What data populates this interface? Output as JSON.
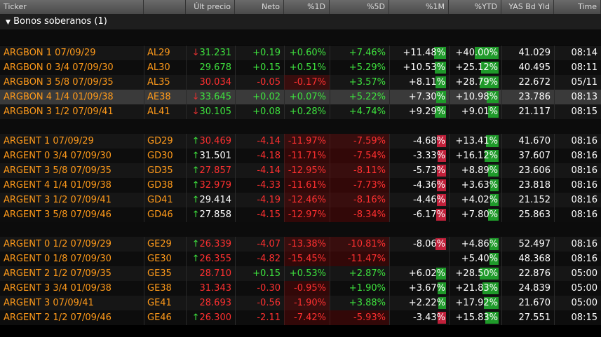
{
  "headers": {
    "ticker": "Ticker",
    "price": "Últ precio",
    "neto": "Neto",
    "d1": "%1D",
    "d5": "%5D",
    "m1": "%1M",
    "ytd": "%YTD",
    "yld": "YAS Bd Yld",
    "time": "Time"
  },
  "group_title": "Bonos soberanos (1)",
  "groups": [
    {
      "rows": [
        {
          "name": "ARGBON 1 07/09/29",
          "code": "AL29",
          "arrow": "↓",
          "arrow_color": "#e03030",
          "price": "31.231",
          "price_color": "#3ee23e",
          "neto": "+0.19",
          "d1": "+0.60%",
          "d5": "+7.46%",
          "m1": "+11.48%",
          "ytd": "+40.00%",
          "yld": "41.029",
          "time": "08:14"
        },
        {
          "name": "ARGBON 0 3/4 07/09/30",
          "code": "AL30",
          "arrow": null,
          "arrow_color": null,
          "price": "29.678",
          "price_color": "#3ee23e",
          "neto": "+0.15",
          "d1": "+0.51%",
          "d5": "+5.29%",
          "m1": "+10.53%",
          "ytd": "+25.12%",
          "yld": "40.495",
          "time": "08:11"
        },
        {
          "name": "ARGBON 3 5/8 07/09/35",
          "code": "AL35",
          "arrow": null,
          "arrow_color": null,
          "price": "30.034",
          "price_color": "#ff3030",
          "neto": "-0.05",
          "d1": "-0.17%",
          "d5": "+3.57%",
          "m1": "+8.11%",
          "ytd": "+28.79%",
          "yld": "22.672",
          "time": "05/11"
        },
        {
          "name": "ARGBON 4 1/4 01/09/38",
          "code": "AE38",
          "arrow": "↓",
          "arrow_color": "#e03030",
          "price": "33.645",
          "price_color": "#3ee23e",
          "neto": "+0.02",
          "d1": "+0.07%",
          "d5": "+5.22%",
          "m1": "+7.30%",
          "ytd": "+10.98%",
          "yld": "23.786",
          "time": "08:13",
          "selected": true
        },
        {
          "name": "ARGBON 3 1/2 07/09/41",
          "code": "AL41",
          "arrow": "↓",
          "arrow_color": "#e03030",
          "price": "30.105",
          "price_color": "#3ee23e",
          "neto": "+0.08",
          "d1": "+0.28%",
          "d5": "+4.74%",
          "m1": "+9.29%",
          "ytd": "+9.01%",
          "yld": "21.117",
          "time": "08:15"
        }
      ]
    },
    {
      "rows": [
        {
          "name": "ARGENT 1 07/09/29",
          "code": "GD29",
          "arrow": "↑",
          "arrow_color": "#3ee23e",
          "price": "30.469",
          "price_color": "#ff3030",
          "neto": "-4.14",
          "d1": "-11.97%",
          "d5": "-7.59%",
          "m1": "-4.68%",
          "ytd": "+13.41%",
          "yld": "41.670",
          "time": "08:16"
        },
        {
          "name": "ARGENT 0 3/4 07/09/30",
          "code": "GD30",
          "arrow": "↑",
          "arrow_color": "#3ee23e",
          "price": "31.501",
          "price_color": "#ffffff",
          "neto": "-4.18",
          "d1": "-11.71%",
          "d5": "-7.54%",
          "m1": "-3.33%",
          "ytd": "+16.12%",
          "yld": "37.607",
          "time": "08:16"
        },
        {
          "name": "ARGENT 3 5/8 07/09/35",
          "code": "GD35",
          "arrow": "↑",
          "arrow_color": "#3ee23e",
          "price": "27.857",
          "price_color": "#ff3030",
          "neto": "-4.14",
          "d1": "-12.95%",
          "d5": "-8.11%",
          "m1": "-5.73%",
          "ytd": "+8.89%",
          "yld": "23.606",
          "time": "08:16"
        },
        {
          "name": "ARGENT 4 1/4 01/09/38",
          "code": "GD38",
          "arrow": "↑",
          "arrow_color": "#3ee23e",
          "price": "32.979",
          "price_color": "#ff3030",
          "neto": "-4.33",
          "d1": "-11.61%",
          "d5": "-7.73%",
          "m1": "-4.36%",
          "ytd": "+3.63%",
          "yld": "23.818",
          "time": "08:16"
        },
        {
          "name": "ARGENT 3 1/2 07/09/41",
          "code": "GD41",
          "arrow": "↑",
          "arrow_color": "#3ee23e",
          "price": "29.414",
          "price_color": "#ffffff",
          "neto": "-4.19",
          "d1": "-12.46%",
          "d5": "-8.16%",
          "m1": "-4.46%",
          "ytd": "+4.02%",
          "yld": "21.152",
          "time": "08:16"
        },
        {
          "name": "ARGENT 3 5/8 07/09/46",
          "code": "GD46",
          "arrow": "↑",
          "arrow_color": "#3ee23e",
          "price": "27.858",
          "price_color": "#ffffff",
          "neto": "-4.15",
          "d1": "-12.97%",
          "d5": "-8.34%",
          "m1": "-6.17%",
          "ytd": "+7.80%",
          "yld": "25.863",
          "time": "08:16"
        }
      ]
    },
    {
      "rows": [
        {
          "name": "ARGENT 0 1/2 07/09/29",
          "code": "GE29",
          "arrow": "↑",
          "arrow_color": "#3ee23e",
          "price": "26.339",
          "price_color": "#ff3030",
          "neto": "-4.07",
          "d1": "-13.38%",
          "d5": "-10.81%",
          "m1": "-8.06%",
          "ytd": "+4.86%",
          "yld": "52.497",
          "time": "08:16"
        },
        {
          "name": "ARGENT 0 1/8 07/09/30",
          "code": "GE30",
          "arrow": "↑",
          "arrow_color": "#3ee23e",
          "price": "26.355",
          "price_color": "#ff3030",
          "neto": "-4.82",
          "d1": "-15.45%",
          "d5": "-11.47%",
          "m1": null,
          "ytd": "+5.40%",
          "yld": "48.368",
          "time": "08:16"
        },
        {
          "name": "ARGENT 2 1/2 07/09/35",
          "code": "GE35",
          "arrow": null,
          "arrow_color": null,
          "price": "28.710",
          "price_color": "#ff3030",
          "neto": "+0.15",
          "d1": "+0.53%",
          "d5": "+2.87%",
          "m1": "+6.02%",
          "ytd": "+28.50%",
          "yld": "22.876",
          "time": "05:00"
        },
        {
          "name": "ARGENT 3 3/4 01/09/38",
          "code": "GE38",
          "arrow": null,
          "arrow_color": null,
          "price": "31.343",
          "price_color": "#ff3030",
          "neto": "-0.30",
          "d1": "-0.95%",
          "d5": "+1.90%",
          "m1": "+3.67%",
          "ytd": "+21.83%",
          "yld": "24.839",
          "time": "05:00"
        },
        {
          "name": "ARGENT 3 07/09/41",
          "code": "GE41",
          "arrow": null,
          "arrow_color": null,
          "price": "28.693",
          "price_color": "#ff3030",
          "neto": "-0.56",
          "d1": "-1.90%",
          "d5": "+3.88%",
          "m1": "+2.22%",
          "ytd": "+17.92%",
          "yld": "21.670",
          "time": "05:00"
        },
        {
          "name": "ARGENT 2 1/2 07/09/46",
          "code": "GE46",
          "arrow": "↑",
          "arrow_color": "#3ee23e",
          "price": "26.300",
          "price_color": "#ff3030",
          "neto": "-2.11",
          "d1": "-7.42%",
          "d5": "-5.93%",
          "m1": "-3.43%",
          "ytd": "+15.83%",
          "yld": "27.551",
          "time": "08:15"
        }
      ]
    }
  ]
}
